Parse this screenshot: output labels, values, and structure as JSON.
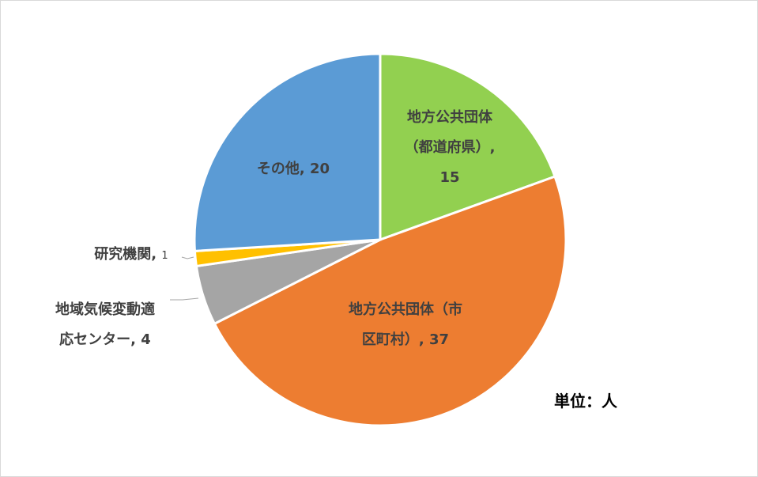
{
  "chart_data": {
    "type": "pie",
    "categories": [
      "地方公共団体（都道府県）",
      "地方公共団体（市区町村）",
      "地域気候変動適応センター",
      "研究機関",
      "その他"
    ],
    "values": [
      15,
      37,
      4,
      1,
      20
    ],
    "colors": [
      "#92d050",
      "#ed7d31",
      "#a5a5a5",
      "#ffc000",
      "#5b9bd5"
    ],
    "label_separator": ", ",
    "unit_note": "単位：人"
  }
}
